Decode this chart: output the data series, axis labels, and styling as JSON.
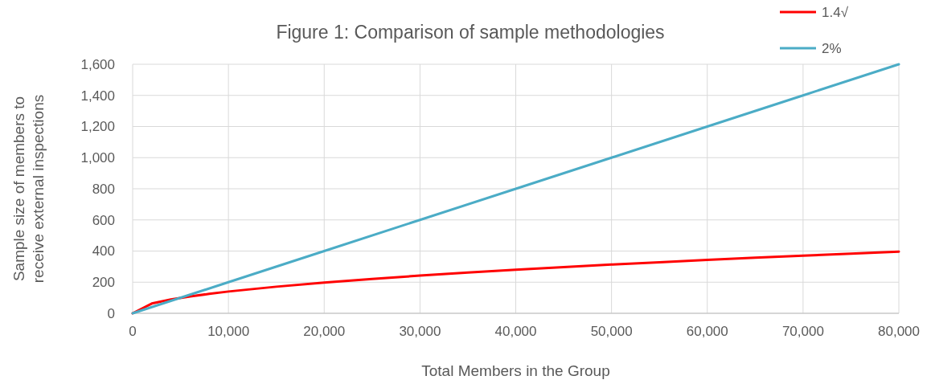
{
  "chart_data": {
    "type": "line",
    "title": "Figure 1: Comparison of sample methodologies",
    "xlabel": "Total Members in the Group",
    "ylabel": "Sample size of members to receive external inspections",
    "xlim": [
      0,
      80000
    ],
    "xticks": [
      {
        "value": 0,
        "label": "0"
      },
      {
        "value": 10000,
        "label": "10,000"
      },
      {
        "value": 20000,
        "label": "20,000"
      },
      {
        "value": 30000,
        "label": "30,000"
      },
      {
        "value": 40000,
        "label": "40,000"
      },
      {
        "value": 50000,
        "label": "50,000"
      },
      {
        "value": 60000,
        "label": "60,000"
      },
      {
        "value": 70000,
        "label": "70,000"
      },
      {
        "value": 80000,
        "label": "80,000"
      }
    ],
    "ylim": [
      0,
      1600
    ],
    "yticks": [
      0,
      200,
      400,
      600,
      800,
      {
        "value": 1000,
        "label": "1,000"
      },
      {
        "value": 1200,
        "label": "1,200"
      },
      {
        "value": 1400,
        "label": "1,400"
      },
      {
        "value": 1600,
        "label": "1,600"
      }
    ],
    "grid": true,
    "legend": "top right",
    "marker": "none",
    "line_style": "solid",
    "series": [
      {
        "name": "1.4√",
        "color": "#ff0000",
        "x": [
          0,
          2000,
          4000,
          6000,
          8000,
          10000,
          15000,
          20000,
          25000,
          30000,
          35000,
          40000,
          45000,
          50000,
          55000,
          60000,
          65000,
          70000,
          75000,
          80000
        ],
        "values": [
          0,
          63,
          89,
          108,
          125,
          140,
          171,
          198,
          221,
          242,
          262,
          280,
          297,
          313,
          328,
          343,
          357,
          370,
          383,
          396
        ]
      },
      {
        "name": "2%",
        "color": "#4bacc6",
        "x": [
          0,
          10000,
          20000,
          30000,
          40000,
          50000,
          60000,
          70000,
          80000
        ],
        "values": [
          0,
          200,
          400,
          600,
          800,
          1000,
          1200,
          1400,
          1600
        ]
      }
    ]
  }
}
